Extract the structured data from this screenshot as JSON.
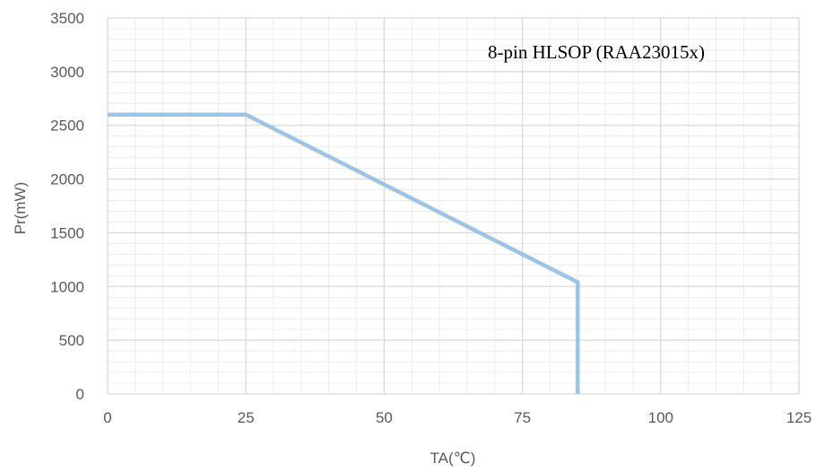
{
  "chart_data": {
    "type": "line",
    "annotation": "8-pin HLSOP (RAA23015x)",
    "xlabel": "TA(℃)",
    "ylabel": "Pr(mW)",
    "xlim": [
      0,
      125
    ],
    "ylim": [
      0,
      3500
    ],
    "x_ticks": [
      0,
      25,
      50,
      75,
      100,
      125
    ],
    "y_ticks": [
      0,
      500,
      1000,
      1500,
      2000,
      2500,
      3000,
      3500
    ],
    "x_minor_step": 5,
    "y_minor_step": 100,
    "grid": true,
    "legend": "none",
    "series": [
      {
        "x": [
          0,
          25,
          85,
          85
        ],
        "y": [
          2600,
          2600,
          1040,
          0
        ]
      }
    ],
    "colors": {
      "line": "#9dc3e6",
      "major_grid": "#d9d9d9",
      "minor_grid": "#ececec",
      "text": "#595959"
    }
  }
}
